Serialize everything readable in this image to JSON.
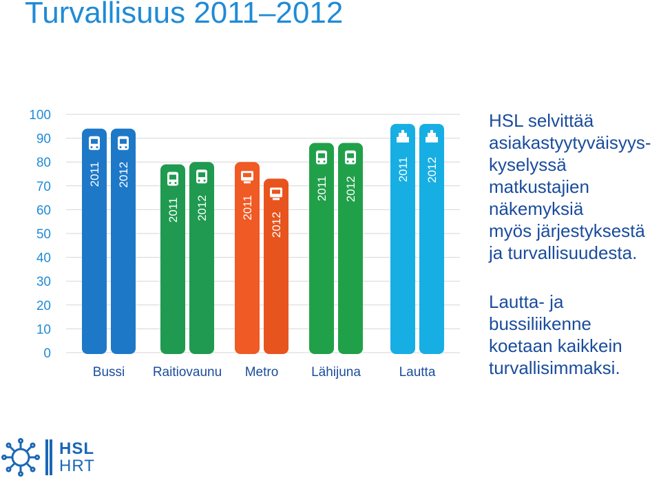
{
  "header": {
    "title": "Turvallisuus 2011–2012"
  },
  "text": {
    "paragraph1": [
      "HSL selvittää",
      "asiakastyytyväisyys-",
      "kyselyssä",
      "matkustajien",
      "näkemyksiä",
      "myös järjestyksestä",
      "ja turvallisuudesta."
    ],
    "paragraph2": [
      "Lautta- ja",
      "bussiliikenne",
      "koetaan kaikkein",
      "turvallisimmaksi."
    ]
  },
  "logo": {
    "line1": "HSL",
    "line2": "HRT"
  },
  "chart_data": {
    "type": "bar",
    "categories": [
      "Bussi",
      "Raitiovaunu",
      "Metro",
      "Lähijuna",
      "Lautta"
    ],
    "series": [
      {
        "name": "2011",
        "values": [
          94,
          79,
          80,
          88,
          96
        ]
      },
      {
        "name": "2012",
        "values": [
          94,
          80,
          73,
          88,
          96
        ]
      }
    ],
    "bar_labels": [
      "2011",
      "2012"
    ],
    "ylim": [
      0,
      100
    ],
    "yticks": [
      0,
      10,
      20,
      30,
      40,
      50,
      60,
      70,
      80,
      90,
      100
    ],
    "grid": true,
    "icons": [
      "bus-icon",
      "tram-icon",
      "metro-icon",
      "train-icon",
      "ferry-icon"
    ],
    "colors": {
      "Bussi": [
        "#1e78c8",
        "#1e78c8"
      ],
      "Raitiovaunu": [
        "#1f9a50",
        "#1f9a50"
      ],
      "Metro": [
        "#f05a24",
        "#e8541e"
      ],
      "Lähijuna": [
        "#21a04a",
        "#21a04a"
      ],
      "Lautta": [
        "#17aee3",
        "#17aee3"
      ]
    },
    "tick_color": "#1f8bd6",
    "category_label_color": "#1a4c9c"
  }
}
